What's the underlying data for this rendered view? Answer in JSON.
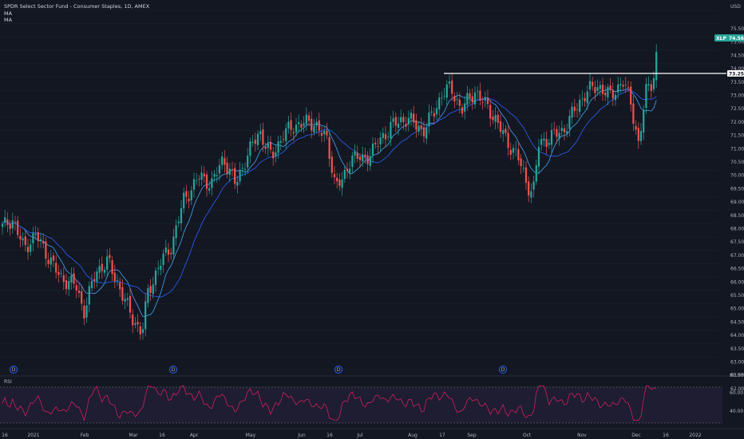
{
  "header": {
    "title": "SPDR Select Sector Fund - Consumer Staples, 1D, AMEX",
    "indicators": [
      "MA",
      "MA"
    ]
  },
  "price_axis": {
    "currency": "USD",
    "labels": [
      "75.50",
      "75.00",
      "74.50",
      "74.00",
      "73.50",
      "73.00",
      "72.50",
      "72.00",
      "71.50",
      "71.00",
      "70.50",
      "70.00",
      "69.50",
      "69.00",
      "68.50",
      "68.00",
      "67.50",
      "67.00",
      "66.50",
      "66.00",
      "65.50",
      "65.00",
      "64.50",
      "64.00",
      "63.50",
      "63.00",
      "62.50",
      "62.00"
    ],
    "last_price": {
      "symbol": "XLP",
      "value": "74.56"
    },
    "line_price": "73.25"
  },
  "time_axis": {
    "labels": [
      "16",
      "2021",
      "Feb",
      "Mar",
      "16",
      "Apr",
      "May",
      "Jun",
      "16",
      "Jul",
      "Aug",
      "17",
      "Sep",
      "Oct",
      "Nov",
      "Dec",
      "16",
      "2022"
    ]
  },
  "events": {
    "label": "D"
  },
  "rsi": {
    "title": "RSI",
    "labels": [
      "80.00",
      "60.00",
      "40.00"
    ]
  },
  "colors": {
    "background": "#131722",
    "up": "#26a69a",
    "down": "#ef5350",
    "ma_fast": "#2962ff",
    "ma_slow": "#42a5f5",
    "rsi_line": "#e91e63",
    "rsi_band": "#7e57c2",
    "badge": "#26a69a"
  }
}
